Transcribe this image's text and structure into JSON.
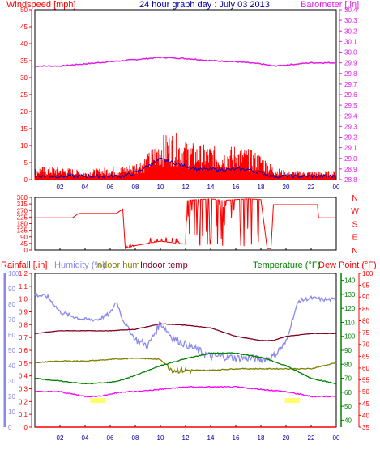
{
  "colors": {
    "wind": "#ff0000",
    "gust_fill": "#ff0000",
    "avg_wind": "#0000c0",
    "barometer": "#e020e0",
    "title": "#0000a0",
    "direction": "#ff0000",
    "rainfall": "#ff0000",
    "humidity": "#8888ee",
    "indoor_hum": "#808000",
    "indoor_temp": "#800020",
    "temperature": "#008000",
    "dew_point": "#ff00ff",
    "axis_left_wind": "#ff0000",
    "axis_right_baro": "#e020e0",
    "axis_rain": "#ff0000",
    "axis_hum": "#8888ee",
    "axis_temp": "#008000",
    "axis_dew": "#ff0000"
  },
  "header": {
    "windspeed_label": "Windspeed [mph]",
    "title": "24 hour graph day : July 03 2013",
    "barometer_label": "Barometer [.in]"
  },
  "bottom_header": {
    "rainfall_label": "Rainfall [.in]",
    "humidity_label": "Humidity (%)",
    "indoor_hum_label": "Indoor hum",
    "indoor_temp_label": "Indoor temp",
    "temperature_label": "Temperature (°F)",
    "dew_point_label": "Dew Point (°F)"
  },
  "compass": [
    "N",
    "W",
    "S",
    "E",
    "N"
  ],
  "chart_data": [
    {
      "type": "line",
      "title": "24 hour graph day : July 03 2013",
      "x_ticks": [
        "02",
        "04",
        "06",
        "08",
        "10",
        "12",
        "14",
        "16",
        "18",
        "20",
        "22",
        "00"
      ],
      "left_axis": {
        "label": "Windspeed [mph]",
        "ticks": [
          0,
          5,
          10,
          15,
          20,
          25,
          30,
          35,
          40,
          45,
          50
        ],
        "ylim": [
          0,
          50
        ]
      },
      "right_axis": {
        "label": "Barometer [.in]",
        "ticks": [
          28.8,
          28.9,
          29.0,
          29.1,
          29.2,
          29.3,
          29.4,
          29.5,
          29.6,
          29.7,
          29.8,
          29.9,
          30.0,
          30.1,
          30.2,
          30.3,
          30.4
        ],
        "ylim": [
          28.8,
          30.4
        ]
      },
      "series": [
        {
          "name": "Windspeed [mph]",
          "axis": "left",
          "x": [
            0,
            2,
            4,
            6,
            7,
            8,
            9,
            10,
            11,
            12,
            13,
            14,
            15,
            16,
            17,
            18,
            19,
            20,
            21,
            22,
            23,
            24
          ],
          "values": [
            3,
            3,
            2,
            3,
            3,
            4,
            6,
            10,
            11,
            9,
            8,
            8,
            7,
            8,
            7,
            6,
            3,
            2,
            2,
            2,
            2,
            2
          ]
        },
        {
          "name": "Average wind",
          "axis": "left",
          "x": [
            0,
            2,
            4,
            6,
            7,
            8,
            9,
            10,
            11,
            12,
            13,
            14,
            15,
            16,
            17,
            18,
            19,
            20,
            21,
            22,
            23,
            24
          ],
          "values": [
            1,
            1,
            1,
            1,
            1,
            2,
            4,
            6,
            5,
            4,
            3,
            3,
            3,
            3,
            3,
            2,
            1,
            1,
            1,
            1,
            1,
            1
          ]
        },
        {
          "name": "Barometer [.in]",
          "axis": "right",
          "x": [
            0,
            2,
            4,
            6,
            8,
            10,
            12,
            14,
            16,
            18,
            19,
            20,
            22,
            24
          ],
          "values": [
            29.87,
            29.87,
            29.89,
            29.91,
            29.93,
            29.95,
            29.94,
            29.92,
            29.91,
            29.89,
            29.87,
            29.88,
            29.9,
            29.9
          ]
        }
      ]
    },
    {
      "type": "line",
      "x_ticks": [
        "02",
        "04",
        "06",
        "08",
        "10",
        "12",
        "14",
        "16",
        "18",
        "20",
        "22",
        "00"
      ],
      "left_axis": {
        "ticks": [
          0,
          45,
          90,
          135,
          180,
          225,
          270,
          315,
          360
        ],
        "ylim": [
          0,
          360
        ]
      },
      "right_axis": {
        "ticks": [
          "N",
          "W",
          "S",
          "E",
          "N"
        ]
      },
      "series": [
        {
          "name": "Wind direction",
          "x": [
            0,
            3,
            3.5,
            6.5,
            7,
            7.2,
            8,
            10,
            12,
            12.1,
            14,
            15,
            17,
            18,
            18.5,
            18.8,
            19,
            20,
            22.5,
            22.6,
            24
          ],
          "values": [
            220,
            220,
            250,
            250,
            280,
            10,
            30,
            60,
            40,
            340,
            350,
            340,
            350,
            345,
            10,
            10,
            310,
            310,
            310,
            220,
            220
          ]
        }
      ]
    },
    {
      "type": "line",
      "x_ticks": [
        "02",
        "04",
        "06",
        "08",
        "10",
        "12",
        "14",
        "16",
        "18",
        "20",
        "22",
        "00"
      ],
      "axes": {
        "rainfall": {
          "label": "Rainfall [.in]",
          "ticks": [
            0,
            0.1,
            0.2,
            0.3,
            0.4,
            0.5,
            0.6,
            0.7,
            0.8,
            0.9,
            1.0,
            1.1,
            1.2
          ],
          "ylim": [
            0,
            1.2
          ]
        },
        "humidity": {
          "label": "Humidity (%)",
          "ticks": [
            0,
            10,
            20,
            30,
            40,
            50,
            60,
            70,
            80,
            90,
            100
          ],
          "ylim": [
            0,
            100
          ]
        },
        "temperature": {
          "label": "Temperature (°F)",
          "ticks": [
            40,
            50,
            60,
            70,
            80,
            90,
            100,
            110,
            120,
            130,
            140
          ],
          "ylim": [
            35,
            145
          ]
        },
        "dew_point": {
          "label": "Dew Point (°F)",
          "ticks": [
            35,
            40,
            45,
            50,
            55,
            60,
            65,
            70,
            75,
            80,
            85,
            90,
            95,
            100
          ],
          "ylim": [
            35,
            100
          ]
        }
      },
      "series": [
        {
          "name": "Humidity (%)",
          "axis": "humidity",
          "x": [
            0,
            1,
            2,
            3,
            4,
            5,
            6,
            6.5,
            7,
            8,
            9,
            10,
            11,
            12,
            13,
            14,
            15,
            16,
            17,
            18,
            19,
            20,
            20.5,
            21,
            22,
            23,
            24
          ],
          "values": [
            86,
            85,
            75,
            72,
            70,
            70,
            74,
            82,
            70,
            57,
            53,
            68,
            58,
            54,
            50,
            46,
            46,
            45,
            45,
            44,
            46,
            55,
            70,
            82,
            84,
            83,
            83
          ]
        },
        {
          "name": "Indoor hum",
          "axis": "humidity",
          "x": [
            0,
            2,
            4,
            6,
            8,
            10,
            11,
            12,
            14,
            16,
            18,
            20,
            22,
            23,
            24
          ],
          "values": [
            42,
            43,
            43,
            44,
            45,
            44,
            37,
            37,
            37,
            38,
            38,
            38,
            38,
            40,
            42
          ]
        },
        {
          "name": "Indoor temp",
          "axis": "temperature",
          "x": [
            0,
            2,
            4,
            6,
            8,
            10,
            12,
            14,
            16,
            18,
            19,
            20,
            22,
            24
          ],
          "values": [
            102,
            104,
            104,
            104,
            105,
            109,
            108,
            106,
            100,
            97,
            97,
            100,
            102,
            102
          ]
        },
        {
          "name": "Temperature (°F)",
          "axis": "temperature",
          "x": [
            0,
            2,
            4,
            6,
            7,
            8,
            10,
            12,
            14,
            16,
            18,
            20,
            22,
            24
          ],
          "values": [
            70,
            68,
            66,
            67,
            69,
            72,
            79,
            84,
            88,
            88,
            85,
            79,
            70,
            66
          ]
        },
        {
          "name": "Dew Point (°F)",
          "axis": "dew_point",
          "x": [
            0,
            2,
            3,
            4,
            5,
            6,
            7,
            8,
            10,
            12,
            14,
            16,
            18,
            20,
            21,
            22,
            24
          ],
          "values": [
            50,
            50,
            49,
            48,
            48,
            49,
            50,
            50,
            51,
            52,
            52,
            52,
            51,
            50,
            49,
            48,
            48
          ]
        },
        {
          "name": "Rainfall [.in]",
          "axis": "rainfall",
          "x": [
            0,
            24
          ],
          "values": [
            0,
            0
          ]
        }
      ]
    }
  ]
}
